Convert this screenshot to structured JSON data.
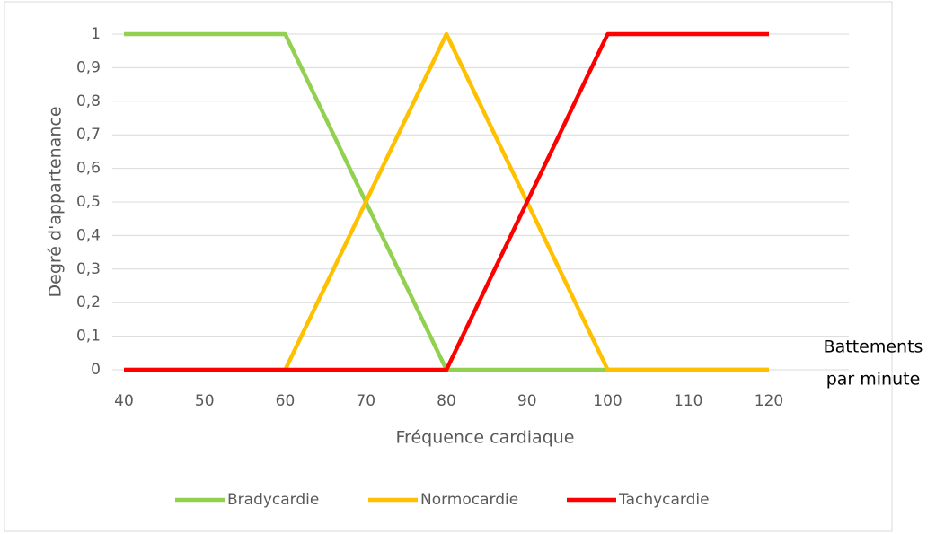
{
  "chart_data": {
    "type": "line",
    "xlabel": "Fréquence cardiaque",
    "ylabel": "Degré d'appartenance",
    "annotations": [
      "Battements",
      "par minute"
    ],
    "x": [
      40,
      60,
      80,
      100,
      120
    ],
    "series": [
      {
        "name": "Bradycardie",
        "color": "#92d050",
        "values": [
          1,
          1,
          0,
          0,
          0
        ]
      },
      {
        "name": "Normocardie",
        "color": "#ffc000",
        "values": [
          0,
          0,
          1,
          0,
          0
        ]
      },
      {
        "name": "Tachycardie",
        "color": "#ff0000",
        "values": [
          0,
          0,
          0,
          1,
          1
        ]
      }
    ],
    "xlim": [
      40,
      120
    ],
    "xticks": [
      40,
      50,
      60,
      70,
      80,
      90,
      100,
      110,
      120
    ],
    "ylim": [
      0,
      1
    ],
    "yticks": [
      0,
      {
        "value": 0.1,
        "label": "0,1"
      },
      {
        "value": 0.2,
        "label": "0,2"
      },
      {
        "value": 0.3,
        "label": "0,3"
      },
      {
        "value": 0.4,
        "label": "0,4"
      },
      {
        "value": 0.5,
        "label": "0,5"
      },
      {
        "value": 0.6,
        "label": "0,6"
      },
      {
        "value": 0.7,
        "label": "0,7"
      },
      {
        "value": 0.8,
        "label": "0,8"
      },
      {
        "value": 0.9,
        "label": "0,9"
      },
      1
    ],
    "grid": true,
    "legend": "bottom"
  }
}
